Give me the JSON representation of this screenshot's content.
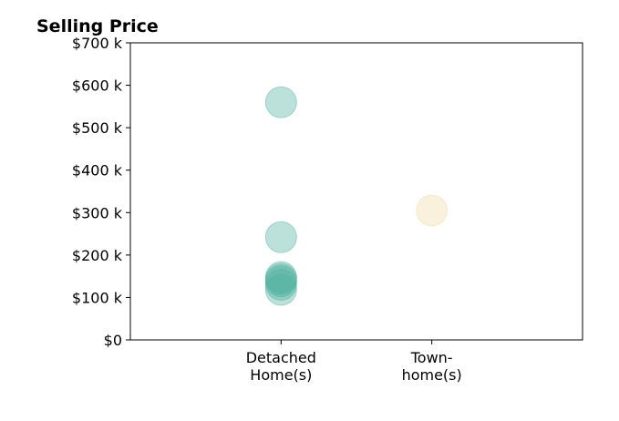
{
  "chart_data": {
    "type": "scatter",
    "title": "Selling Price",
    "xlabel": "",
    "ylabel": "",
    "categories": [
      [
        "Detached",
        "Home(s)"
      ],
      [
        "Town-",
        "home(s)"
      ]
    ],
    "xlim": [
      -1,
      2
    ],
    "ylim": [
      0,
      700000
    ],
    "yticks": [
      {
        "value": 0,
        "label": "$0"
      },
      {
        "value": 100000,
        "label": "$100 k"
      },
      {
        "value": 200000,
        "label": "$200 k"
      },
      {
        "value": 300000,
        "label": "$300 k"
      },
      {
        "value": 400000,
        "label": "$400 k"
      },
      {
        "value": 500000,
        "label": "$500 k"
      },
      {
        "value": 600000,
        "label": "$600 k"
      },
      {
        "value": 700000,
        "label": "$700 k"
      }
    ],
    "grid": false,
    "legend": "none",
    "series": [
      {
        "category_index": 0,
        "color": "#4eaf9f",
        "values": [
          560000,
          242000,
          148000,
          143000,
          138000,
          130000,
          118000
        ]
      },
      {
        "category_index": 1,
        "color": "#f0d9a0",
        "values": [
          305000
        ]
      }
    ]
  }
}
